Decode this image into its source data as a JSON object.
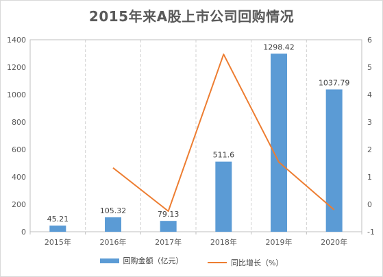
{
  "chart_data": {
    "type": "bar",
    "title": "2015年来A股上市公司回购情况",
    "categories": [
      "2015年",
      "2016年",
      "2017年",
      "2018年",
      "2019年",
      "2020年"
    ],
    "series": [
      {
        "name": "回购金额（亿元）",
        "type": "bar",
        "axis": "left",
        "color": "#5B9BD5",
        "values": [
          45.21,
          105.32,
          79.13,
          511.6,
          1298.42,
          1037.79
        ],
        "labels": [
          "45.21",
          "105.32",
          "79.13",
          "511.6",
          "1298.42",
          "1037.79"
        ]
      },
      {
        "name": "同比增长（%）",
        "type": "line",
        "axis": "right",
        "color": "#ED7D31",
        "values": [
          null,
          1.33,
          -0.25,
          5.47,
          1.54,
          -0.2
        ]
      }
    ],
    "y_left": {
      "lim": [
        0,
        1400
      ],
      "ticks": [
        "0",
        "200",
        "400",
        "600",
        "800",
        "1000",
        "1200",
        "1400"
      ]
    },
    "y_right": {
      "lim": [
        -1,
        6
      ],
      "ticks": [
        "-1",
        "0",
        "1",
        "2",
        "3",
        "4",
        "5",
        "6"
      ]
    },
    "grid": "vertical-dashed",
    "legend": "bottom"
  }
}
